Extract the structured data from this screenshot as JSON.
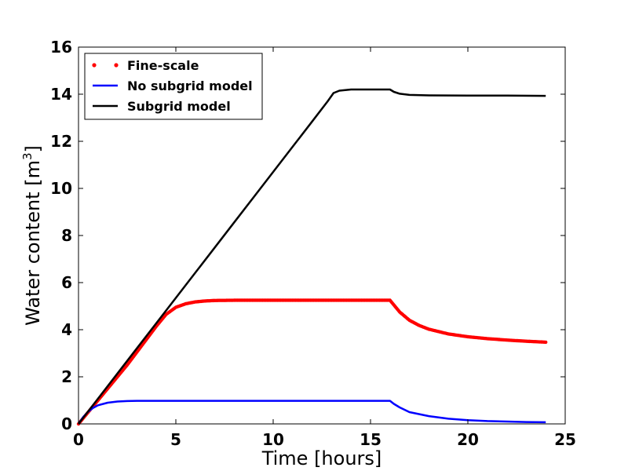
{
  "chart_data": {
    "type": "line",
    "xlabel": "Time [hours]",
    "ylabel_main": "Water content [m",
    "ylabel_sup": "3",
    "ylabel_close": "]",
    "xlim": [
      0,
      25
    ],
    "ylim": [
      0,
      16
    ],
    "xticks": [
      0,
      5,
      10,
      15,
      20,
      25
    ],
    "yticks": [
      0,
      2,
      4,
      6,
      8,
      10,
      12,
      14,
      16
    ],
    "grid": false,
    "legend_position": "top-left",
    "series": [
      {
        "name": "Fine-scale",
        "style": "dotted",
        "color": "#ff0000",
        "x": [
          0,
          0.5,
          1,
          1.5,
          2,
          2.5,
          3,
          3.5,
          4,
          4.5,
          5,
          5.5,
          6,
          6.5,
          7,
          8,
          9,
          10,
          11,
          12,
          13,
          14,
          15,
          16,
          16.25,
          16.5,
          17,
          17.5,
          18,
          19,
          20,
          21,
          22,
          23,
          24
        ],
        "y": [
          0,
          0.5,
          1.0,
          1.5,
          2.0,
          2.5,
          3.05,
          3.6,
          4.15,
          4.65,
          4.95,
          5.1,
          5.18,
          5.22,
          5.24,
          5.25,
          5.25,
          5.25,
          5.25,
          5.25,
          5.25,
          5.25,
          5.25,
          5.25,
          5.0,
          4.75,
          4.4,
          4.18,
          4.02,
          3.82,
          3.7,
          3.62,
          3.56,
          3.51,
          3.47
        ]
      },
      {
        "name": "No subgrid model",
        "style": "solid",
        "color": "#0000ff",
        "x": [
          0,
          0.25,
          0.5,
          0.75,
          1,
          1.5,
          2,
          2.5,
          3,
          4,
          6,
          8,
          10,
          12,
          14,
          16,
          16.2,
          16.5,
          17,
          18,
          19,
          20,
          21,
          22,
          23,
          24
        ],
        "y": [
          0,
          0.3,
          0.52,
          0.68,
          0.79,
          0.9,
          0.95,
          0.97,
          0.98,
          0.98,
          0.98,
          0.98,
          0.98,
          0.98,
          0.98,
          0.98,
          0.85,
          0.7,
          0.5,
          0.33,
          0.22,
          0.16,
          0.12,
          0.1,
          0.08,
          0.07
        ]
      },
      {
        "name": "Subgrid model",
        "style": "solid",
        "color": "#000000",
        "x": [
          0,
          1,
          2,
          3,
          4,
          5,
          6,
          7,
          8,
          9,
          10,
          11,
          12,
          12.8,
          13.1,
          13.4,
          14,
          15,
          16,
          16.2,
          16.5,
          17,
          18,
          20,
          22,
          24
        ],
        "y": [
          0,
          1.07,
          2.14,
          3.21,
          4.28,
          5.35,
          6.42,
          7.49,
          8.56,
          9.63,
          10.7,
          11.77,
          12.84,
          13.7,
          14.05,
          14.15,
          14.2,
          14.2,
          14.2,
          14.1,
          14.02,
          13.97,
          13.95,
          13.94,
          13.94,
          13.93
        ]
      }
    ]
  }
}
